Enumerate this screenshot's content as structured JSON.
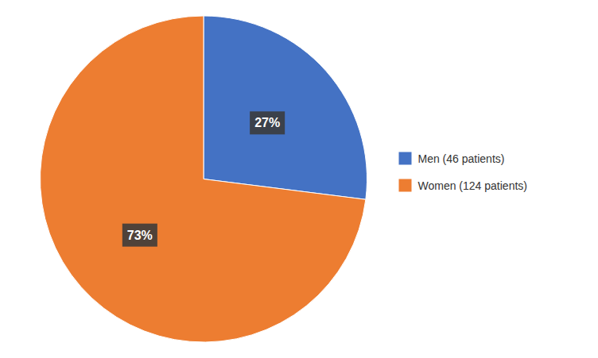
{
  "chart_data": {
    "type": "pie",
    "categories": [
      "Men (46 patients)",
      "Women (124 patients)"
    ],
    "values": [
      27,
      73
    ],
    "value_labels": [
      "27%",
      "73%"
    ],
    "colors": [
      "#4472C4",
      "#ED7D31"
    ],
    "data_labels": true,
    "legend": "right"
  }
}
